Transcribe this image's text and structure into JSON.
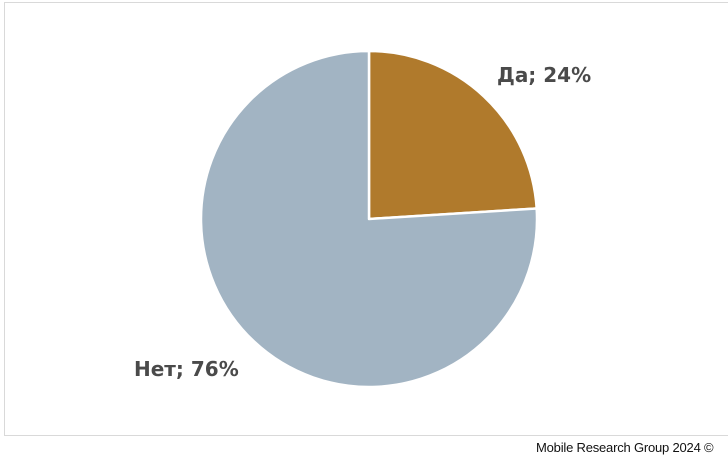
{
  "chart_data": {
    "type": "pie",
    "title": "",
    "slices": [
      {
        "label": "Да; 24%",
        "category": "Да",
        "value": 24,
        "color": "#b07a2c"
      },
      {
        "label": "Нет; 76%",
        "category": "Нет",
        "value": 76,
        "color": "#a2b4c3"
      }
    ],
    "legend": "none",
    "slice_border_color": "#ffffff"
  },
  "footer": {
    "credit": "Mobile Research Group 2024 ©"
  }
}
